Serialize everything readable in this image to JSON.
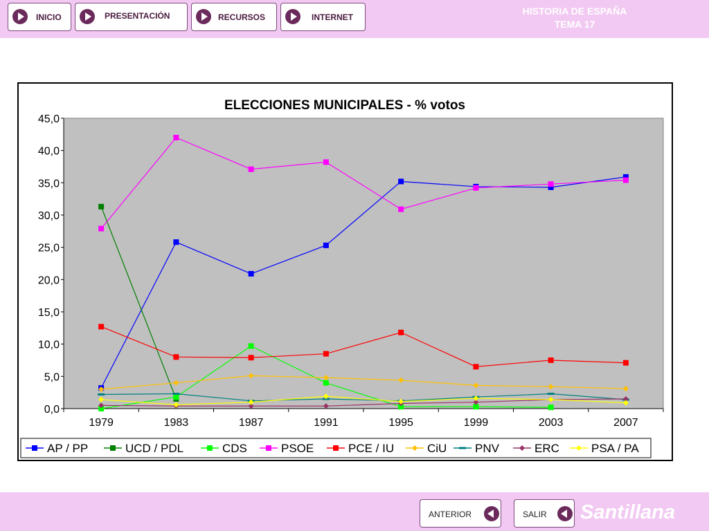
{
  "nav": {
    "inicio": "INICIO",
    "presentacion": "PRESENTACIÓN",
    "recursos": "RECURSOS",
    "internet": "INTERNET"
  },
  "header": {
    "line1": "HISTORIA DE ESPAÑA",
    "line2": "TEMA 17"
  },
  "footer": {
    "anterior": "ANTERIOR",
    "salir": "SALIR",
    "brand": "Santillana"
  },
  "colors": {
    "plot_bg": "#c0c0c0",
    "header_bg": "#f2c9f2",
    "button_arrow": "#6b2a5c"
  },
  "chart_data": {
    "type": "line",
    "title": "ELECCIONES MUNICIPALES - % votos",
    "xlabel": "",
    "ylabel": "",
    "categories": [
      "1979",
      "1983",
      "1987",
      "1991",
      "1995",
      "1999",
      "2003",
      "2007"
    ],
    "ylim": [
      0,
      45
    ],
    "yticks": [
      "0,0",
      "5,0",
      "10,0",
      "15,0",
      "20,0",
      "25,0",
      "30,0",
      "35,0",
      "40,0",
      "45,0"
    ],
    "grid": false,
    "legend": "bottom",
    "series": [
      {
        "name": "AP / PP",
        "color": "#0000ff",
        "marker": "square",
        "values": [
          3.2,
          25.8,
          20.9,
          25.3,
          35.2,
          34.4,
          34.3,
          35.9
        ]
      },
      {
        "name": "UCD / PDL",
        "color": "#008000",
        "marker": "square",
        "values": [
          31.3,
          1.5,
          null,
          null,
          null,
          null,
          null,
          null
        ]
      },
      {
        "name": "CDS",
        "color": "#00ff00",
        "marker": "square",
        "values": [
          0.0,
          1.8,
          9.7,
          4.0,
          0.3,
          0.3,
          0.2,
          null
        ]
      },
      {
        "name": "PSOE",
        "color": "#ff00ff",
        "marker": "square",
        "values": [
          27.9,
          42.0,
          37.1,
          38.2,
          30.9,
          34.2,
          34.8,
          35.4
        ]
      },
      {
        "name": "PCE / IU",
        "color": "#ff0000",
        "marker": "square",
        "values": [
          12.7,
          8.0,
          7.9,
          8.5,
          11.8,
          6.5,
          7.5,
          7.1
        ]
      },
      {
        "name": "CiU",
        "color": "#ffc000",
        "marker": "diamond",
        "values": [
          3.0,
          4.0,
          5.1,
          4.8,
          4.4,
          3.6,
          3.4,
          3.1
        ]
      },
      {
        "name": "PNV",
        "color": "#008080",
        "marker": "dash",
        "values": [
          2.2,
          2.3,
          1.2,
          1.5,
          1.2,
          1.8,
          2.3,
          1.4
        ]
      },
      {
        "name": "ERC",
        "color": "#993366",
        "marker": "diamond",
        "values": [
          0.5,
          0.4,
          0.4,
          0.4,
          0.8,
          1.0,
          1.4,
          1.5
        ]
      },
      {
        "name": "PSA / PA",
        "color": "#ffff00",
        "marker": "diamond",
        "values": [
          1.4,
          0.6,
          1.0,
          1.9,
          1.1,
          1.6,
          1.4,
          0.9
        ]
      }
    ]
  }
}
